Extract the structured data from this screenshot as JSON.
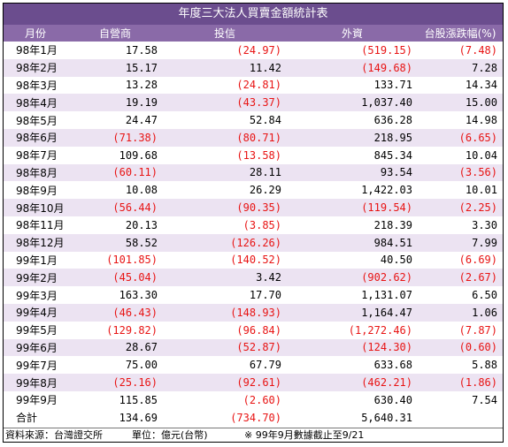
{
  "title": "年度三大法人買賣金額統計表",
  "headers": [
    "月份",
    "自營商",
    "投信",
    "外資",
    "台股漲跌幅(%)"
  ],
  "rows": [
    {
      "month": "98年1月",
      "dealer": "17.58",
      "trust": "(24.97)",
      "foreign": "(519.15)",
      "change": "(7.48)"
    },
    {
      "month": "98年2月",
      "dealer": "15.17",
      "trust": "11.42",
      "foreign": "(149.68)",
      "change": "7.28"
    },
    {
      "month": "98年3月",
      "dealer": "13.28",
      "trust": "(24.81)",
      "foreign": "133.71",
      "change": "14.34"
    },
    {
      "month": "98年4月",
      "dealer": "19.19",
      "trust": "(43.37)",
      "foreign": "1,037.40",
      "change": "15.00"
    },
    {
      "month": "98年5月",
      "dealer": "24.47",
      "trust": "52.84",
      "foreign": "636.28",
      "change": "14.98"
    },
    {
      "month": "98年6月",
      "dealer": "(71.38)",
      "trust": "(80.71)",
      "foreign": "218.95",
      "change": "(6.65)"
    },
    {
      "month": "98年7月",
      "dealer": "109.68",
      "trust": "(13.58)",
      "foreign": "845.34",
      "change": "10.04"
    },
    {
      "month": "98年8月",
      "dealer": "(60.11)",
      "trust": "28.11",
      "foreign": "93.54",
      "change": "(3.56)"
    },
    {
      "month": "98年9月",
      "dealer": "10.08",
      "trust": "26.29",
      "foreign": "1,422.03",
      "change": "10.01"
    },
    {
      "month": "98年10月",
      "dealer": "(56.44)",
      "trust": "(90.35)",
      "foreign": "(119.54)",
      "change": "(2.25)"
    },
    {
      "month": "98年11月",
      "dealer": "20.13",
      "trust": "(3.85)",
      "foreign": "218.39",
      "change": "3.30"
    },
    {
      "month": "98年12月",
      "dealer": "58.52",
      "trust": "(126.26)",
      "foreign": "984.51",
      "change": "7.99"
    },
    {
      "month": "99年1月",
      "dealer": "(101.85)",
      "trust": "(140.52)",
      "foreign": "40.50",
      "change": "(6.69)"
    },
    {
      "month": "99年2月",
      "dealer": "(45.04)",
      "trust": "3.42",
      "foreign": "(902.62)",
      "change": "(2.67)"
    },
    {
      "month": "99年3月",
      "dealer": "163.30",
      "trust": "17.70",
      "foreign": "1,131.07",
      "change": "6.50"
    },
    {
      "month": "99年4月",
      "dealer": "(46.43)",
      "trust": "(148.93)",
      "foreign": "1,164.47",
      "change": "1.06"
    },
    {
      "month": "99年5月",
      "dealer": "(129.82)",
      "trust": "(96.84)",
      "foreign": "(1,272.46)",
      "change": "(7.87)"
    },
    {
      "month": "99年6月",
      "dealer": "28.67",
      "trust": "(52.87)",
      "foreign": "(124.30)",
      "change": "(0.60)"
    },
    {
      "month": "99年7月",
      "dealer": "75.00",
      "trust": "67.79",
      "foreign": "633.68",
      "change": "5.88"
    },
    {
      "month": "99年8月",
      "dealer": "(25.16)",
      "trust": "(92.61)",
      "foreign": "(462.21)",
      "change": "(1.86)"
    },
    {
      "month": "99年9月",
      "dealer": "115.85",
      "trust": "(2.60)",
      "foreign": "630.40",
      "change": "7.54"
    }
  ],
  "total": {
    "month": "合計",
    "dealer": "134.69",
    "trust": "(734.70)",
    "foreign": "5,640.31",
    "change": ""
  },
  "footer": {
    "source": "資料來源：台灣證交所",
    "unit": "單位：億元(台幣)",
    "note": "※ 99年9月數據截止至9/21"
  },
  "colors": {
    "title_bg": "#6b4d8e",
    "header_bg": "#8a6aa8",
    "row_alt": "#ece3f2",
    "negative": "#e81414"
  }
}
